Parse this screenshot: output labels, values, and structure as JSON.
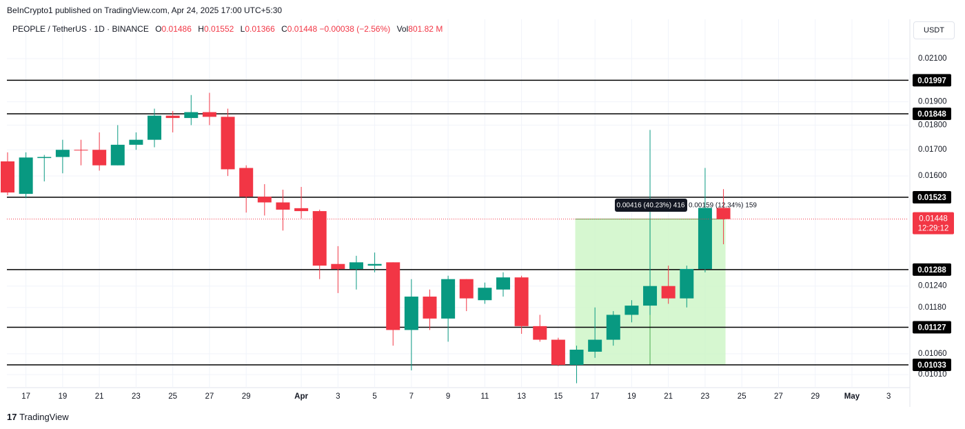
{
  "header": {
    "published": "BeInCrypto1 published on TradingView.com, Apr 24, 2025 17:00 UTC+5:30",
    "brand": "TradingView",
    "currency_button": "USDT"
  },
  "legend": {
    "symbol": "PEOPLE / TetherUS · 1D · BINANCE",
    "o_label": "O",
    "o": "0.01486",
    "h_label": "H",
    "h": "0.01552",
    "l_label": "L",
    "l": "0.01366",
    "c_label": "C",
    "c": "0.01448",
    "change": "−0.00038 (−2.56%)",
    "vol_label": "Vol",
    "vol": "801.82 M"
  },
  "chart_data": {
    "type": "candlestick",
    "log_scale": true,
    "grid": true,
    "up_color": "#089981",
    "down_color": "#f23645",
    "categories": [
      null,
      "17",
      null,
      "19",
      null,
      "21",
      null,
      "23",
      null,
      "25",
      null,
      "27",
      null,
      "29",
      null,
      null,
      "Apr",
      null,
      "3",
      null,
      "5",
      null,
      "7",
      null,
      "9",
      null,
      "11",
      null,
      "13",
      null,
      "15",
      null,
      "17",
      null,
      "19",
      null,
      "21",
      null,
      "23",
      null,
      "25",
      null,
      "27",
      null,
      "29",
      null,
      "May",
      null,
      "3",
      null
    ],
    "open": [
      0.01655,
      0.01535,
      0.01668,
      0.01672,
      0.017,
      0.017,
      0.0164,
      0.0172,
      0.0174,
      0.0184,
      0.0183,
      0.01855,
      0.01835,
      0.0163,
      0.01525,
      0.01505,
      0.01485,
      0.01475,
      0.01305,
      0.0129,
      0.013,
      0.0131,
      0.0112,
      0.0121,
      0.0115,
      0.0126,
      0.012,
      0.0123,
      0.01265,
      0.0113,
      0.01095,
      0.01033,
      0.01065,
      0.01095,
      0.0116,
      0.01185,
      0.0124,
      0.01205,
      0.0129,
      0.01486,
      null,
      null,
      null,
      null,
      null,
      null,
      null,
      null,
      null,
      null
    ],
    "high": [
      0.0169,
      0.0169,
      0.0168,
      0.0174,
      0.0174,
      0.0177,
      0.018,
      0.0177,
      0.0187,
      0.0186,
      0.0193,
      0.0194,
      0.0187,
      0.0164,
      0.0157,
      0.0155,
      0.0156,
      0.0148,
      0.0136,
      0.0133,
      0.0134,
      0.0131,
      0.0126,
      0.0123,
      0.0127,
      0.0126,
      0.0125,
      0.0128,
      0.0127,
      0.0116,
      0.011,
      0.0108,
      0.0118,
      0.0117,
      0.012,
      0.0178,
      0.013,
      0.013,
      0.0163,
      0.01552,
      null,
      null,
      null,
      null,
      null,
      null,
      null,
      null,
      null,
      null
    ],
    "low": [
      0.0153,
      0.0152,
      0.0158,
      0.0161,
      0.0164,
      0.0162,
      0.0164,
      0.017,
      0.0171,
      0.0177,
      0.018,
      0.018,
      0.016,
      0.0147,
      0.0146,
      0.0141,
      0.0145,
      0.0126,
      0.0122,
      0.0123,
      0.0128,
      0.0108,
      0.0102,
      0.0112,
      0.0109,
      0.0117,
      0.0119,
      0.0121,
      0.0111,
      0.0109,
      0.0103,
      0.0099,
      0.0105,
      0.0108,
      0.0114,
      0.0116,
      0.0119,
      0.0118,
      0.0128,
      0.01366,
      null,
      null,
      null,
      null,
      null,
      null,
      null,
      null,
      null,
      null
    ],
    "close": [
      0.0154,
      0.0167,
      0.01672,
      0.017,
      0.01698,
      0.0164,
      0.0172,
      0.0174,
      0.0184,
      0.0183,
      0.01855,
      0.01835,
      0.01625,
      0.01525,
      0.01505,
      0.0148,
      0.01475,
      0.013,
      0.0129,
      0.0131,
      0.01305,
      0.0112,
      0.0121,
      0.0115,
      0.0126,
      0.01205,
      0.01235,
      0.01265,
      0.0113,
      0.01095,
      0.01033,
      0.0107,
      0.01095,
      0.0116,
      0.01185,
      0.0124,
      0.01205,
      0.0129,
      0.01486,
      0.01448,
      null,
      null,
      null,
      null,
      null,
      null,
      null,
      null,
      null,
      null
    ],
    "ylim": [
      0.0098,
      0.023
    ],
    "yticks": [
      {
        "value": 0.021,
        "label": "0.02100"
      },
      {
        "value": 0.019,
        "label": "0.01900"
      },
      {
        "value": 0.018,
        "label": "0.01800"
      },
      {
        "value": 0.017,
        "label": "0.01700"
      },
      {
        "value": 0.016,
        "label": "0.01600"
      },
      {
        "value": 0.0124,
        "label": "0.01240"
      },
      {
        "value": 0.0118,
        "label": "0.01180"
      },
      {
        "value": 0.0106,
        "label": "0.01060"
      },
      {
        "value": 0.0101,
        "label": "0.01010"
      }
    ],
    "levels": [
      {
        "value": 0.01997,
        "label": "0.01997"
      },
      {
        "value": 0.01848,
        "label": "0.01848"
      },
      {
        "value": 0.01523,
        "label": "0.01523"
      },
      {
        "value": 0.01288,
        "label": "0.01288"
      },
      {
        "value": 0.01127,
        "label": "0.01127"
      },
      {
        "value": 0.01033,
        "label": "0.01033"
      }
    ],
    "last_price": {
      "value": 0.01448,
      "label": "0.01448",
      "countdown": "12:29:12"
    },
    "measure": {
      "from": 0.01033,
      "to": 0.01448,
      "label": "0.00416 (40.23%) 416",
      "second_label": "0.00159 (12.34%) 159"
    }
  }
}
